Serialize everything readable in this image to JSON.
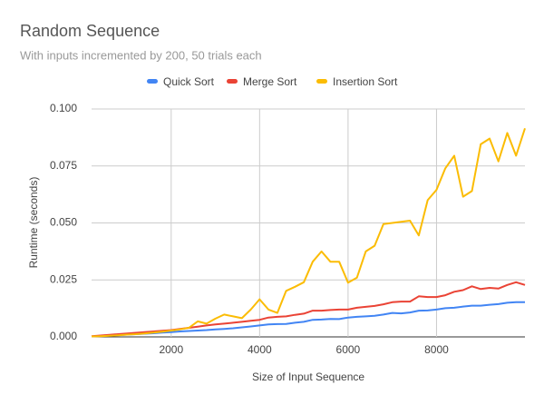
{
  "chart_data": {
    "type": "line",
    "title": "Random Sequence",
    "subtitle": "With inputs incremented by 200, 50 trials each",
    "x_label": "Size of Input Sequence",
    "y_label": "Runtime (seconds)",
    "x": [
      200,
      400,
      600,
      800,
      1000,
      1200,
      1400,
      1600,
      1800,
      2000,
      2200,
      2400,
      2600,
      2800,
      3000,
      3200,
      3400,
      3600,
      3800,
      4000,
      4200,
      4400,
      4600,
      4800,
      5000,
      5200,
      5400,
      5600,
      5800,
      6000,
      6200,
      6400,
      6600,
      6800,
      7000,
      7200,
      7400,
      7600,
      7800,
      8000,
      8200,
      8400,
      8600,
      8800,
      9000,
      9200,
      9400,
      9600,
      9800,
      10000
    ],
    "series": [
      {
        "name": "Quick Sort",
        "color": "#4285f4",
        "values": [
          0.0002,
          0.0004,
          0.0006,
          0.0008,
          0.001,
          0.0012,
          0.0014,
          0.0016,
          0.0019,
          0.0021,
          0.0024,
          0.0026,
          0.0028,
          0.003,
          0.0033,
          0.0035,
          0.0038,
          0.0042,
          0.0046,
          0.005,
          0.0055,
          0.0056,
          0.0057,
          0.0062,
          0.0066,
          0.0075,
          0.0076,
          0.0079,
          0.0078,
          0.0085,
          0.0088,
          0.009,
          0.0093,
          0.0098,
          0.0105,
          0.0103,
          0.0107,
          0.0115,
          0.0116,
          0.012,
          0.0126,
          0.0128,
          0.0133,
          0.0137,
          0.0137,
          0.0141,
          0.0144,
          0.015,
          0.0152,
          0.0152
        ]
      },
      {
        "name": "Merge Sort",
        "color": "#ea4335",
        "values": [
          0.0003,
          0.0006,
          0.0009,
          0.0012,
          0.0015,
          0.0018,
          0.0021,
          0.0024,
          0.0027,
          0.003,
          0.0035,
          0.004,
          0.0045,
          0.005,
          0.0055,
          0.0058,
          0.0062,
          0.0066,
          0.0071,
          0.0075,
          0.0085,
          0.0088,
          0.009,
          0.0097,
          0.0102,
          0.0115,
          0.0115,
          0.0118,
          0.012,
          0.012,
          0.0128,
          0.0132,
          0.0136,
          0.0143,
          0.0152,
          0.0155,
          0.0155,
          0.0178,
          0.0175,
          0.0175,
          0.0183,
          0.0198,
          0.0205,
          0.0222,
          0.021,
          0.0215,
          0.0212,
          0.0228,
          0.024,
          0.0228
        ]
      },
      {
        "name": "Insertion Sort",
        "color": "#fbbc04",
        "values": [
          0.0002,
          0.0003,
          0.0005,
          0.0007,
          0.001,
          0.0012,
          0.0015,
          0.0019,
          0.0023,
          0.0028,
          0.0033,
          0.004,
          0.0068,
          0.0058,
          0.008,
          0.0098,
          0.009,
          0.0082,
          0.012,
          0.0165,
          0.012,
          0.0105,
          0.0202,
          0.022,
          0.024,
          0.033,
          0.0375,
          0.033,
          0.033,
          0.0238,
          0.026,
          0.0375,
          0.04,
          0.0495,
          0.05,
          0.0505,
          0.051,
          0.0445,
          0.06,
          0.0645,
          0.074,
          0.0795,
          0.0615,
          0.064,
          0.0845,
          0.087,
          0.077,
          0.0895,
          0.0795,
          0.0915
        ]
      }
    ],
    "xlim": [
      200,
      10000
    ],
    "xticks": [
      2000,
      4000,
      6000,
      8000
    ],
    "ylim": [
      0,
      0.1
    ],
    "yticks": [
      {
        "value": 0,
        "label": "0.000"
      },
      {
        "value": 0.025,
        "label": "0.025"
      },
      {
        "value": 0.05,
        "label": "0.050"
      },
      {
        "value": 0.075,
        "label": "0.075"
      },
      {
        "value": 0.1,
        "label": "0.100"
      }
    ],
    "grid": true,
    "legend": "top"
  }
}
